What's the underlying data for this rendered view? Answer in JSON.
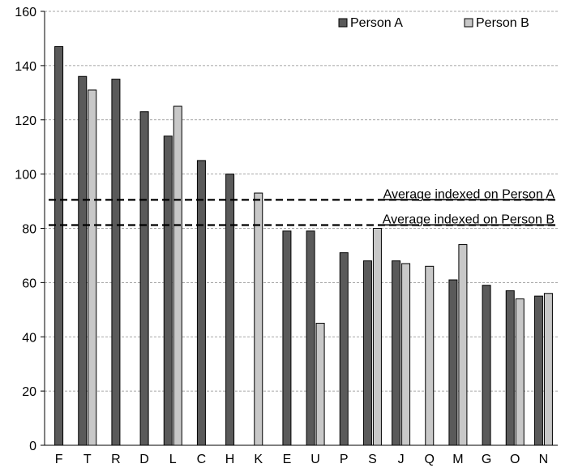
{
  "chart_data": {
    "type": "bar",
    "title": "",
    "xlabel": "",
    "ylabel": "",
    "ylim": [
      0,
      160
    ],
    "yticks": [
      0,
      20,
      40,
      60,
      80,
      100,
      120,
      140,
      160
    ],
    "grid": true,
    "legend_position": "top-right",
    "categories": [
      "F",
      "T",
      "R",
      "D",
      "L",
      "C",
      "H",
      "K",
      "E",
      "U",
      "P",
      "S",
      "J",
      "Q",
      "M",
      "G",
      "O",
      "N"
    ],
    "series": [
      {
        "name": "Person A",
        "color": "#5a5a5a",
        "values": [
          147,
          136,
          135,
          123,
          114,
          105,
          100,
          null,
          79,
          79,
          71,
          68,
          68,
          null,
          61,
          59,
          57,
          55
        ]
      },
      {
        "name": "Person B",
        "color": "#c8c8c8",
        "values": [
          null,
          131,
          null,
          null,
          125,
          null,
          null,
          93,
          null,
          45,
          null,
          80,
          67,
          66,
          74,
          null,
          54,
          56
        ]
      }
    ],
    "reference_lines": [
      {
        "label": "Average indexed on Person A",
        "value": 90.5
      },
      {
        "label": "Average indexed on Person B",
        "value": 81.2
      }
    ]
  }
}
